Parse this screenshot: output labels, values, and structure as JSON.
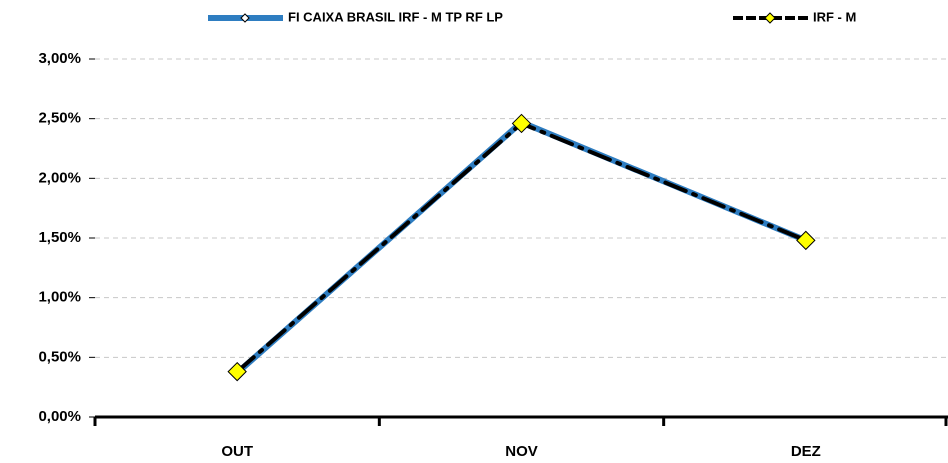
{
  "chart_data": {
    "type": "line",
    "categories": [
      "OUT",
      "NOV",
      "DEZ"
    ],
    "series": [
      {
        "name": "FI CAIXA BRASIL IRF - M TP RF LP",
        "color": "#2e7dc1",
        "values": [
          0.37,
          2.47,
          1.48
        ]
      },
      {
        "name": "IRF - M",
        "color": "#000000",
        "marker_color": "#ffff00",
        "values": [
          0.38,
          2.46,
          1.48
        ]
      }
    ],
    "ylim": [
      0,
      3
    ],
    "yticks": [
      {
        "value": 0,
        "label": "0,00%"
      },
      {
        "value": 0.5,
        "label": "0,50%"
      },
      {
        "value": 1,
        "label": "1,00%"
      },
      {
        "value": 1.5,
        "label": "1,50%"
      },
      {
        "value": 2,
        "label": "2,00%"
      },
      {
        "value": 2.5,
        "label": "2,50%"
      },
      {
        "value": 3,
        "label": "3,00%"
      }
    ],
    "grid": true,
    "legend": "top"
  }
}
